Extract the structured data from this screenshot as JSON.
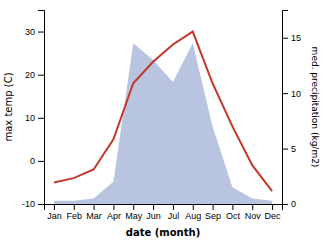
{
  "chart_data": {
    "type": "line",
    "categories": [
      "Jan",
      "Feb",
      "Mar",
      "Apr",
      "May",
      "Jun",
      "Jul",
      "Aug",
      "Sep",
      "Oct",
      "Nov",
      "Dec"
    ],
    "series": [
      {
        "type": "area",
        "axis": "y2",
        "color": "#b8c4e0",
        "values": [
          0.3,
          0.3,
          0.5,
          2,
          14.5,
          13,
          11,
          14.5,
          7,
          1.5,
          0.5,
          0.3
        ]
      },
      {
        "type": "line",
        "color": "#c0392b",
        "values": [
          -5,
          -4,
          -2,
          5,
          18,
          23,
          27,
          30,
          18,
          8,
          -1,
          -7
        ]
      }
    ],
    "xlabel": "date (month)",
    "ylabel": "max temp (C)",
    "y2label": "med. precipitation (kg/m2)",
    "ylim": [
      -10,
      35
    ],
    "yticks": [
      -10,
      0,
      10,
      20,
      30
    ],
    "y2lim": [
      0,
      17.5
    ],
    "y2ticks": [
      0,
      5,
      10,
      15
    ]
  }
}
